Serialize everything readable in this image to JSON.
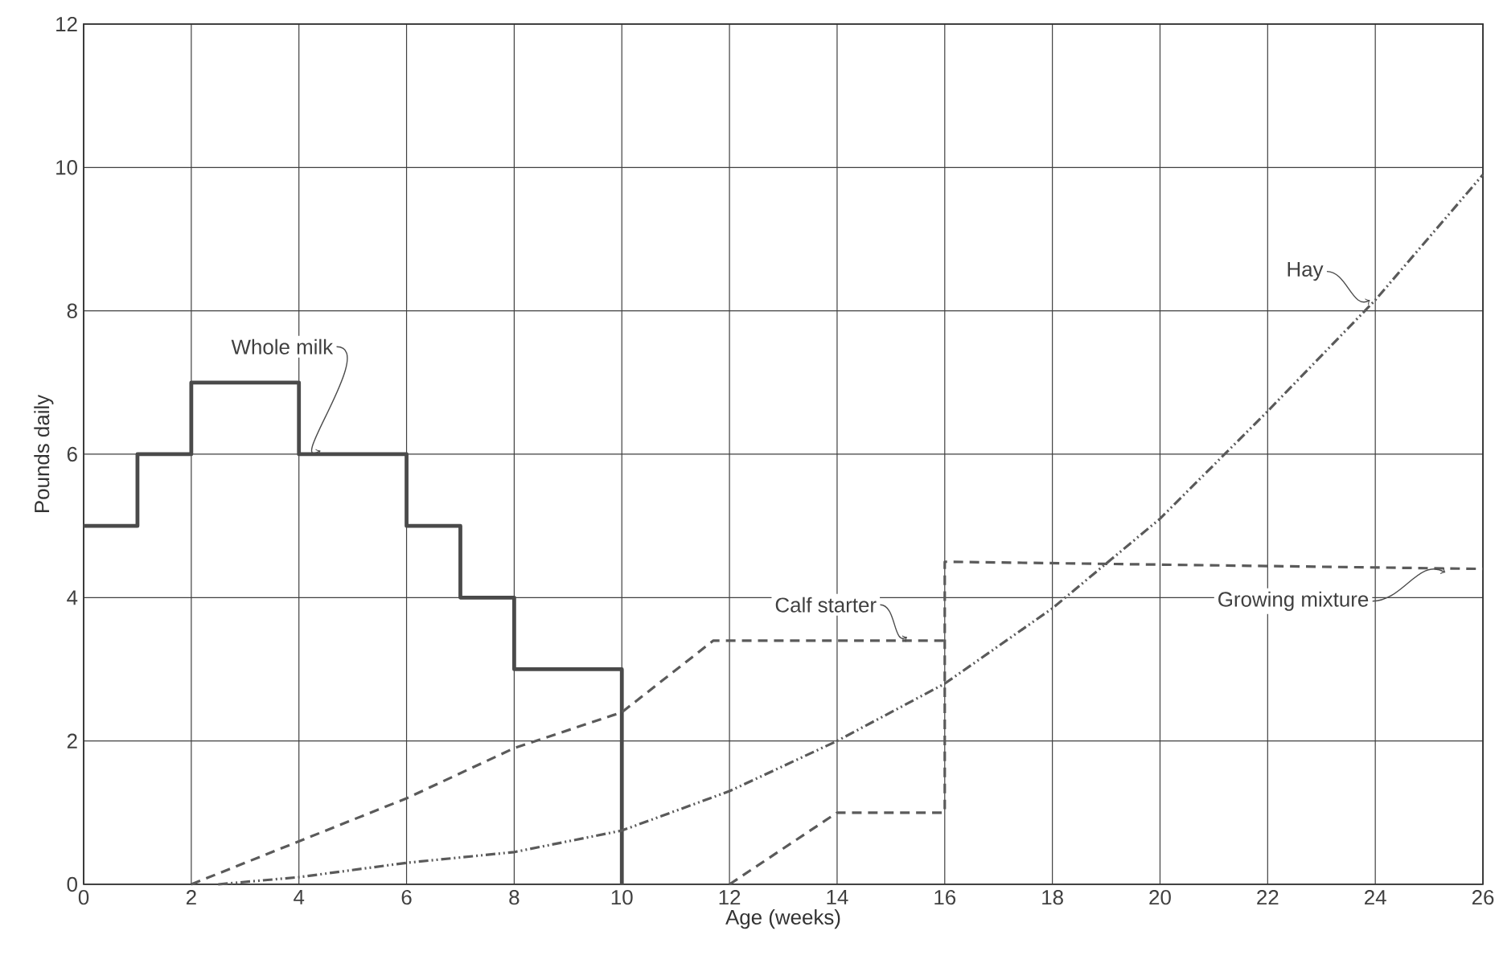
{
  "chart_data": {
    "type": "line",
    "xlabel": "Age (weeks)",
    "ylabel": "Pounds daily",
    "xlim": [
      0,
      26
    ],
    "ylim": [
      0,
      12
    ],
    "xticks": [
      0,
      2,
      4,
      6,
      8,
      10,
      12,
      14,
      16,
      18,
      20,
      22,
      24,
      26
    ],
    "yticks": [
      0,
      2,
      4,
      6,
      8,
      10,
      12
    ],
    "grid": true,
    "legend": false,
    "marker": "none",
    "series": [
      {
        "name": "Whole milk",
        "type": "step",
        "color": "#4a4a4a",
        "line_style": "solid",
        "x": [
          0,
          1,
          2,
          4,
          6,
          7,
          8,
          10
        ],
        "values": [
          5,
          6,
          7,
          6,
          5,
          4,
          3,
          0
        ]
      },
      {
        "name": "Calf starter",
        "color": "#5a5a5a",
        "line_style": "dashed",
        "x": [
          2,
          4,
          6,
          8,
          10,
          11.7,
          16
        ],
        "values": [
          0,
          0.6,
          1.2,
          1.9,
          2.4,
          3.4,
          3.4
        ]
      },
      {
        "name": "Hay",
        "color": "#5a5a5a",
        "line_style": "dashdotted",
        "x": [
          2.5,
          4,
          6,
          8,
          10,
          12,
          14,
          16,
          18,
          20,
          22,
          24,
          26
        ],
        "values": [
          0,
          0.1,
          0.3,
          0.45,
          0.75,
          1.3,
          2.0,
          2.8,
          3.85,
          5.1,
          6.6,
          8.15,
          9.9
        ]
      },
      {
        "name": "Growing mixture",
        "color": "#5a5a5a",
        "line_style": "dashed",
        "x": [
          12,
          14,
          16,
          16,
          26
        ],
        "values": [
          0,
          1,
          1,
          4.5,
          4.4
        ]
      }
    ]
  }
}
